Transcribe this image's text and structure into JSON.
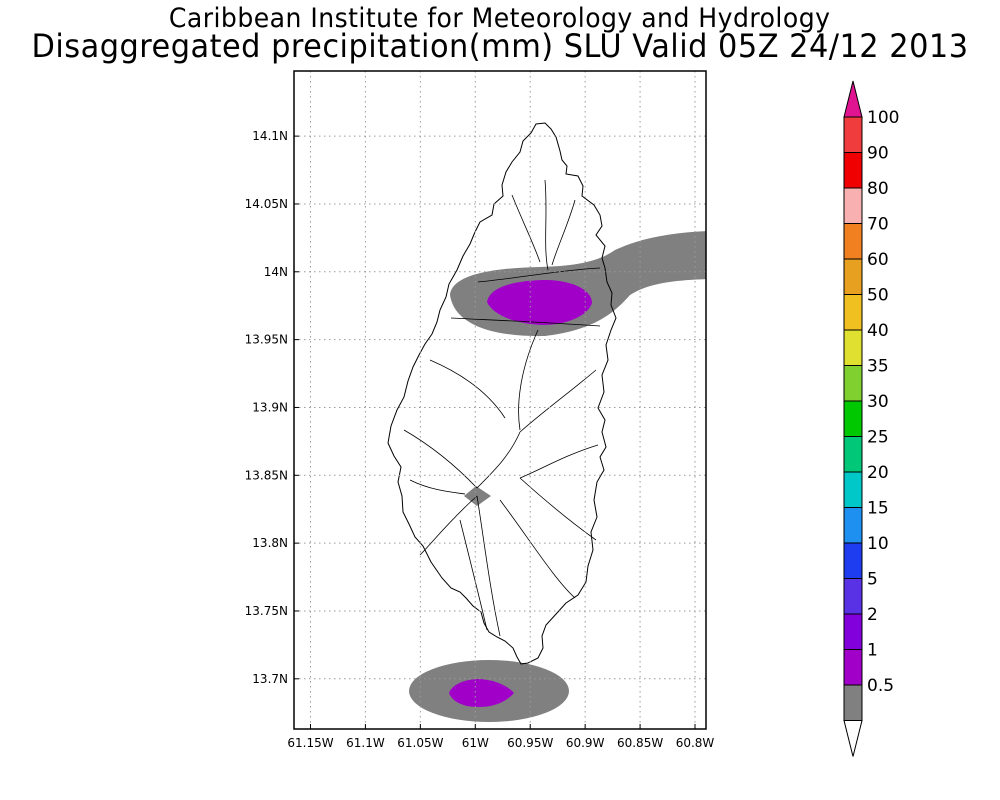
{
  "title_line1": "Caribbean Institute for Meteorology and Hydrology",
  "title_line2": "Disaggregated precipitation(mm) SLU Valid 05Z 24/12 2013",
  "map": {
    "lon_range": [
      -61.165,
      -60.79
    ],
    "lat_range": [
      13.663,
      14.148
    ],
    "lon_ticks": [
      {
        "value": -61.15,
        "label": "61.15W"
      },
      {
        "value": -61.1,
        "label": "61.1W"
      },
      {
        "value": -61.05,
        "label": "61.05W"
      },
      {
        "value": -61.0,
        "label": "61W"
      },
      {
        "value": -60.95,
        "label": "60.95W"
      },
      {
        "value": -60.9,
        "label": "60.9W"
      },
      {
        "value": -60.85,
        "label": "60.85W"
      },
      {
        "value": -60.8,
        "label": "60.8W"
      }
    ],
    "lat_ticks": [
      {
        "value": 14.1,
        "label": "14.1N"
      },
      {
        "value": 14.05,
        "label": "14.05N"
      },
      {
        "value": 14.0,
        "label": "14N"
      },
      {
        "value": 13.95,
        "label": "13.95N"
      },
      {
        "value": 13.9,
        "label": "13.9N"
      },
      {
        "value": 13.85,
        "label": "13.85N"
      },
      {
        "value": 13.8,
        "label": "13.8N"
      },
      {
        "value": 13.75,
        "label": "13.75N"
      },
      {
        "value": 13.7,
        "label": "13.7N"
      }
    ],
    "grid": true
  },
  "colorbar": {
    "levels": [
      "100",
      "90",
      "80",
      "70",
      "60",
      "50",
      "40",
      "35",
      "30",
      "25",
      "20",
      "15",
      "10",
      "5",
      "2",
      "1",
      "0.5"
    ],
    "colors": [
      "#e01490",
      "#f03c3c",
      "#f00000",
      "#f8b0b0",
      "#f08020",
      "#e8a020",
      "#f0c020",
      "#e0e030",
      "#80d030",
      "#00c800",
      "#00c878",
      "#00c8c8",
      "#1e90f0",
      "#1e3cf0",
      "#5a32e6",
      "#8200dc",
      "#a000c8",
      "#808080",
      "#ffffff"
    ]
  },
  "precip_colors": {
    "light": "#808080",
    "medium": "#a000c8"
  }
}
